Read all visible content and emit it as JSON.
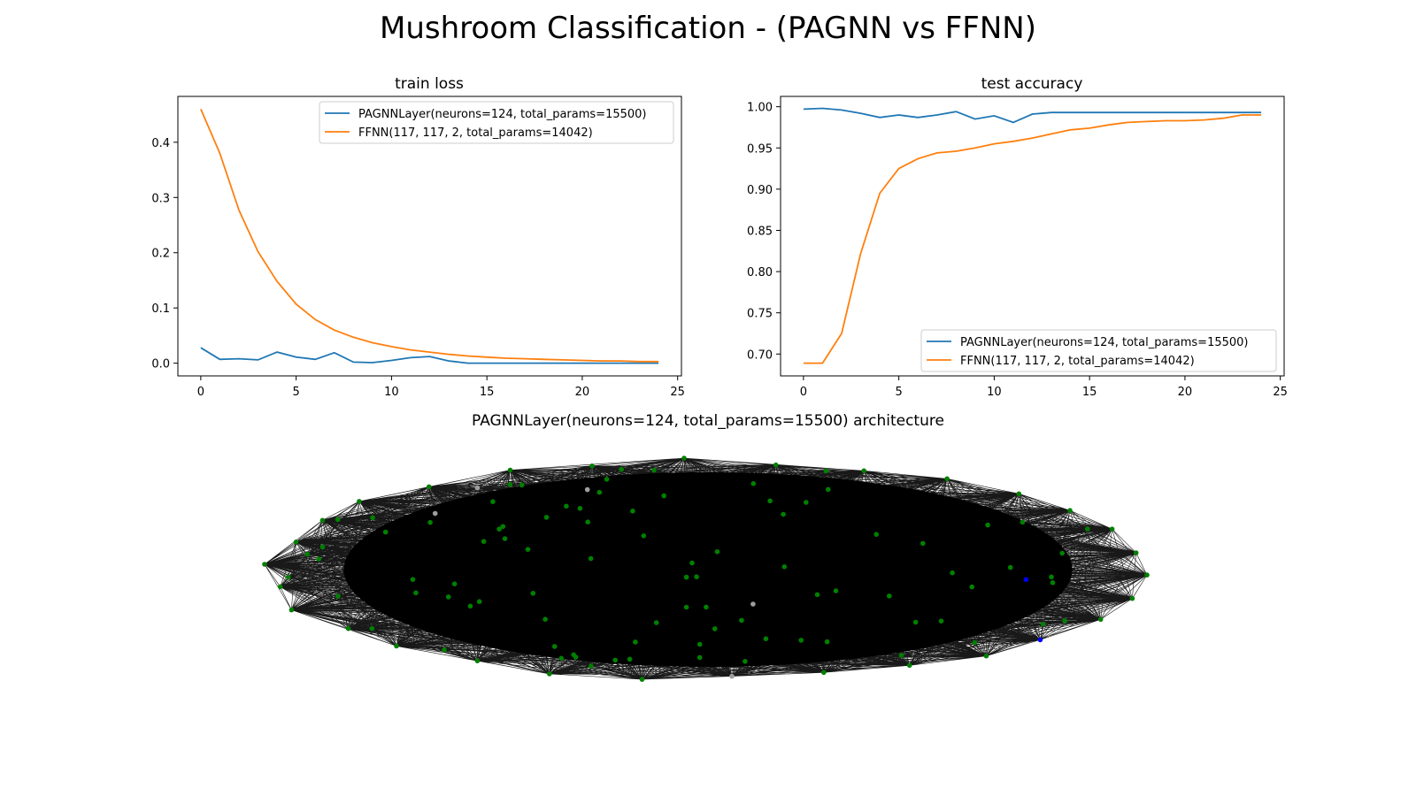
{
  "figure": {
    "title": "Mushroom Classification - (PAGNN vs FFNN)",
    "colors": {
      "pagnn": "#1f77b4",
      "ffnn": "#ff7f0e",
      "node_green": "#008000",
      "node_blue": "#0000ff",
      "node_gray": "#9e9e9e",
      "edge": "#000000"
    }
  },
  "chart_data": [
    {
      "type": "line",
      "title": "train loss",
      "xlabel": "",
      "ylabel": "",
      "xlim": [
        -1.2,
        25.2
      ],
      "ylim": [
        -0.023,
        0.483
      ],
      "xticks": [
        0,
        5,
        10,
        15,
        20,
        25
      ],
      "yticks": [
        0.0,
        0.1,
        0.2,
        0.3,
        0.4
      ],
      "ytick_labels": [
        "0.0",
        "0.1",
        "0.2",
        "0.3",
        "0.4"
      ],
      "legend_position": "upper right",
      "x": [
        0,
        1,
        2,
        3,
        4,
        5,
        6,
        7,
        8,
        9,
        10,
        11,
        12,
        13,
        14,
        15,
        16,
        17,
        18,
        19,
        20,
        21,
        22,
        23,
        24
      ],
      "series": [
        {
          "name": "PAGNNLayer(neurons=124, total_params=15500)",
          "color": "#1f77b4",
          "values": [
            0.028,
            0.007,
            0.008,
            0.006,
            0.02,
            0.011,
            0.007,
            0.019,
            0.002,
            0.001,
            0.005,
            0.01,
            0.012,
            0.004,
            0.0,
            0.0,
            0.0,
            0.0,
            0.0,
            0.0,
            0.0,
            0.0,
            0.0,
            0.0,
            0.0
          ]
        },
        {
          "name": "FFNN(117, 117, 2, total_params=14042)",
          "color": "#ff7f0e",
          "values": [
            0.46,
            0.38,
            0.277,
            0.202,
            0.148,
            0.107,
            0.079,
            0.06,
            0.047,
            0.037,
            0.03,
            0.024,
            0.02,
            0.016,
            0.013,
            0.011,
            0.009,
            0.008,
            0.007,
            0.006,
            0.005,
            0.004,
            0.004,
            0.003,
            0.003
          ]
        }
      ]
    },
    {
      "type": "line",
      "title": "test accuracy",
      "xlabel": "",
      "ylabel": "",
      "xlim": [
        -1.2,
        25.2
      ],
      "ylim": [
        0.6735,
        1.0125
      ],
      "xticks": [
        0,
        5,
        10,
        15,
        20,
        25
      ],
      "yticks": [
        0.7,
        0.75,
        0.8,
        0.85,
        0.9,
        0.95,
        1.0
      ],
      "ytick_labels": [
        "0.70",
        "0.75",
        "0.80",
        "0.85",
        "0.90",
        "0.95",
        "1.00"
      ],
      "legend_position": "lower right",
      "x": [
        0,
        1,
        2,
        3,
        4,
        5,
        6,
        7,
        8,
        9,
        10,
        11,
        12,
        13,
        14,
        15,
        16,
        17,
        18,
        19,
        20,
        21,
        22,
        23,
        24
      ],
      "series": [
        {
          "name": "PAGNNLayer(neurons=124, total_params=15500)",
          "color": "#1f77b4",
          "values": [
            0.997,
            0.998,
            0.996,
            0.992,
            0.987,
            0.99,
            0.987,
            0.99,
            0.994,
            0.985,
            0.989,
            0.981,
            0.991,
            0.993,
            0.993,
            0.993,
            0.993,
            0.993,
            0.993,
            0.993,
            0.993,
            0.993,
            0.993,
            0.993,
            0.993
          ]
        },
        {
          "name": "FFNN(117, 117, 2, total_params=14042)",
          "color": "#ff7f0e",
          "values": [
            0.689,
            0.689,
            0.725,
            0.822,
            0.895,
            0.925,
            0.937,
            0.944,
            0.946,
            0.95,
            0.955,
            0.958,
            0.962,
            0.967,
            0.972,
            0.974,
            0.978,
            0.981,
            0.982,
            0.983,
            0.983,
            0.984,
            0.986,
            0.99,
            0.99
          ]
        }
      ]
    }
  ],
  "network": {
    "title": "PAGNNLayer(neurons=124, total_params=15500) architecture",
    "node_count": 124,
    "colors": {
      "input": "#008000",
      "output": "#0000ff",
      "hidden": "#9e9e9e",
      "edge": "#000000"
    }
  }
}
